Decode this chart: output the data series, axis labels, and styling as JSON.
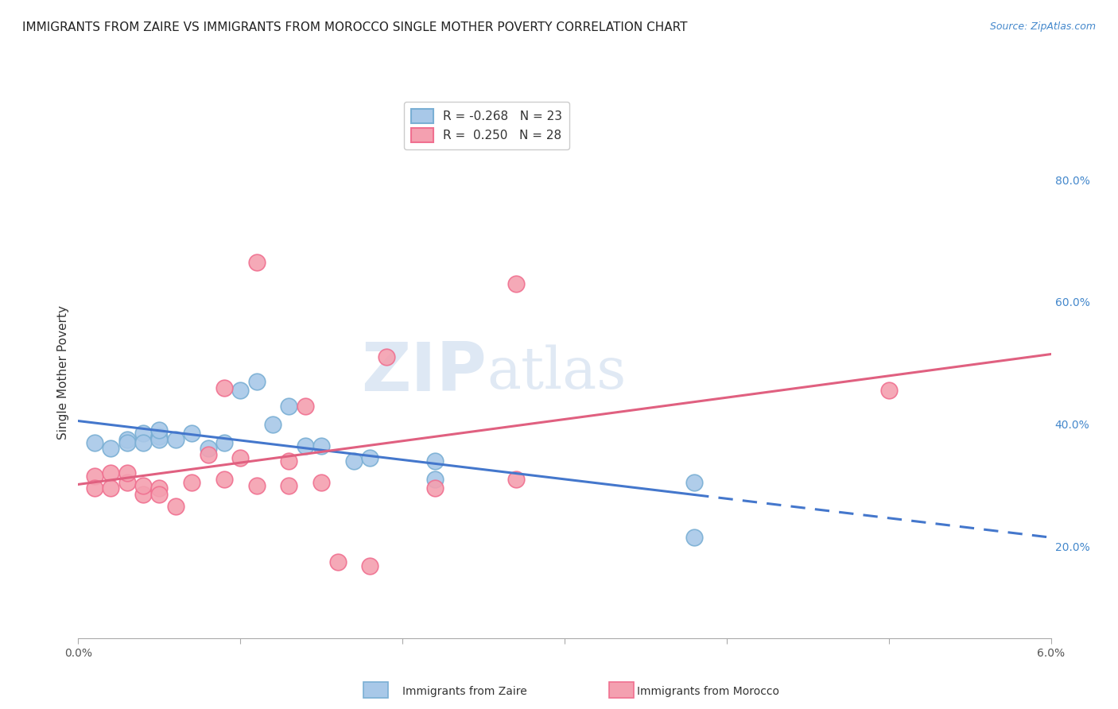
{
  "title": "IMMIGRANTS FROM ZAIRE VS IMMIGRANTS FROM MOROCCO SINGLE MOTHER POVERTY CORRELATION CHART",
  "source": "Source: ZipAtlas.com",
  "ylabel": "Single Mother Poverty",
  "ylabel_right_ticks": [
    "20.0%",
    "40.0%",
    "60.0%",
    "80.0%"
  ],
  "ylabel_right_vals": [
    0.2,
    0.4,
    0.6,
    0.8
  ],
  "xlim": [
    0.0,
    0.06
  ],
  "ylim": [
    0.05,
    0.92
  ],
  "zaire_color": "#a8c8e8",
  "morocco_color": "#f4a0b0",
  "zaire_edge_color": "#7aafd4",
  "morocco_edge_color": "#f07090",
  "zaire_line_color": "#4477cc",
  "morocco_line_color": "#e06080",
  "watermark_zip": "ZIP",
  "watermark_atlas": "atlas",
  "background_color": "#ffffff",
  "grid_color": "#cccccc",
  "title_fontsize": 11,
  "axis_label_fontsize": 11,
  "tick_fontsize": 10,
  "source_fontsize": 9,
  "zaire_points": [
    [
      0.001,
      0.37
    ],
    [
      0.002,
      0.36
    ],
    [
      0.003,
      0.375
    ],
    [
      0.003,
      0.37
    ],
    [
      0.004,
      0.385
    ],
    [
      0.004,
      0.37
    ],
    [
      0.005,
      0.38
    ],
    [
      0.005,
      0.375
    ],
    [
      0.005,
      0.39
    ],
    [
      0.006,
      0.375
    ],
    [
      0.007,
      0.385
    ],
    [
      0.008,
      0.36
    ],
    [
      0.009,
      0.37
    ],
    [
      0.01,
      0.455
    ],
    [
      0.011,
      0.47
    ],
    [
      0.012,
      0.4
    ],
    [
      0.013,
      0.43
    ],
    [
      0.014,
      0.365
    ],
    [
      0.015,
      0.365
    ],
    [
      0.017,
      0.34
    ],
    [
      0.018,
      0.345
    ],
    [
      0.022,
      0.34
    ],
    [
      0.022,
      0.31
    ],
    [
      0.038,
      0.305
    ],
    [
      0.038,
      0.215
    ]
  ],
  "morocco_points": [
    [
      0.001,
      0.315
    ],
    [
      0.001,
      0.295
    ],
    [
      0.002,
      0.32
    ],
    [
      0.002,
      0.295
    ],
    [
      0.003,
      0.305
    ],
    [
      0.003,
      0.32
    ],
    [
      0.004,
      0.285
    ],
    [
      0.004,
      0.3
    ],
    [
      0.005,
      0.295
    ],
    [
      0.005,
      0.285
    ],
    [
      0.006,
      0.265
    ],
    [
      0.007,
      0.305
    ],
    [
      0.008,
      0.35
    ],
    [
      0.009,
      0.46
    ],
    [
      0.009,
      0.31
    ],
    [
      0.01,
      0.345
    ],
    [
      0.011,
      0.3
    ],
    [
      0.013,
      0.34
    ],
    [
      0.013,
      0.3
    ],
    [
      0.014,
      0.43
    ],
    [
      0.015,
      0.305
    ],
    [
      0.016,
      0.175
    ],
    [
      0.018,
      0.168
    ],
    [
      0.019,
      0.51
    ],
    [
      0.022,
      0.295
    ],
    [
      0.027,
      0.31
    ],
    [
      0.027,
      0.63
    ],
    [
      0.05,
      0.455
    ],
    [
      0.011,
      0.665
    ]
  ]
}
